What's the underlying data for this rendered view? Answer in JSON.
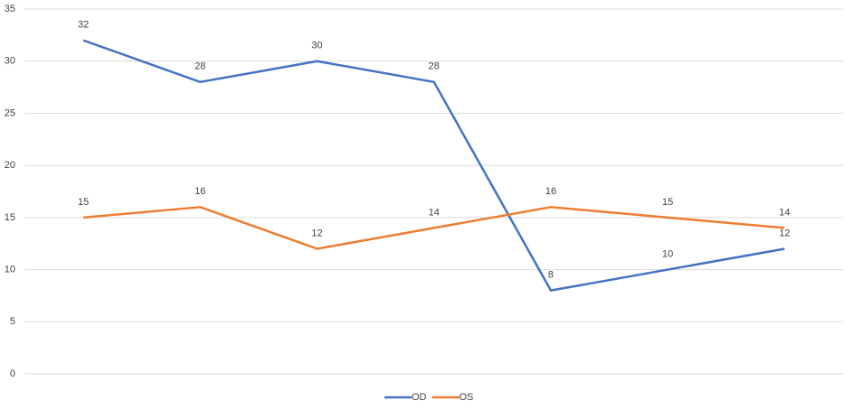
{
  "chart_data": {
    "type": "line",
    "categories": [
      null,
      null,
      null,
      null,
      null,
      null,
      null
    ],
    "series": [
      {
        "name": "OD",
        "color": "#4472c4",
        "values": [
          32,
          28,
          30,
          28,
          8,
          10,
          12
        ]
      },
      {
        "name": "OS",
        "color": "#ed7d31",
        "values": [
          15,
          16,
          12,
          14,
          16,
          15,
          14
        ]
      }
    ],
    "ylim": [
      0,
      35
    ],
    "yticks": [
      0,
      5,
      10,
      15,
      20,
      25,
      30,
      35
    ],
    "grid": true,
    "legend": "bottom"
  }
}
